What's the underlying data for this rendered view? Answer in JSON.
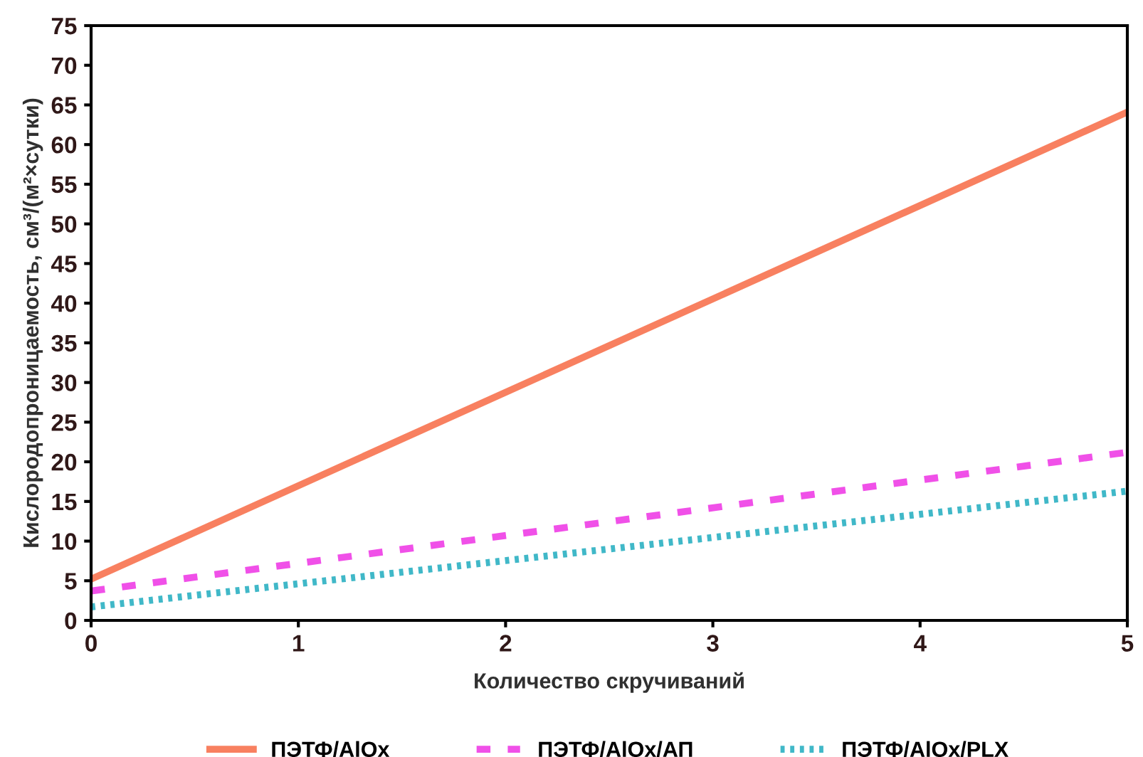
{
  "chart_data": {
    "type": "line",
    "xlabel": "Количество скручиваний",
    "ylabel": "Кислородопроницаемость, см³/(м²×сутки)",
    "x": [
      0,
      5
    ],
    "series": [
      {
        "name": "ПЭТФ/AlOx",
        "color": "#f88060",
        "values": [
          5.2,
          64.1
        ],
        "line_style": "solid"
      },
      {
        "name": "ПЭТФ/AlOx/АП",
        "color": "#f050e8",
        "values": [
          3.7,
          21.2
        ],
        "line_style": "dashed"
      },
      {
        "name": "ПЭТФ/AlOx/PLX",
        "color": "#40b8c8",
        "values": [
          1.7,
          16.3
        ],
        "line_style": "dotted"
      }
    ],
    "xlim": [
      0,
      5
    ],
    "xticks": [
      0,
      1,
      2,
      3,
      4,
      5
    ],
    "ylim": [
      0,
      75
    ],
    "yticks": [
      0,
      5,
      10,
      15,
      20,
      25,
      30,
      35,
      40,
      45,
      50,
      55,
      60,
      65,
      70,
      75
    ],
    "grid": false,
    "legend": "bottom",
    "marker": "none"
  }
}
